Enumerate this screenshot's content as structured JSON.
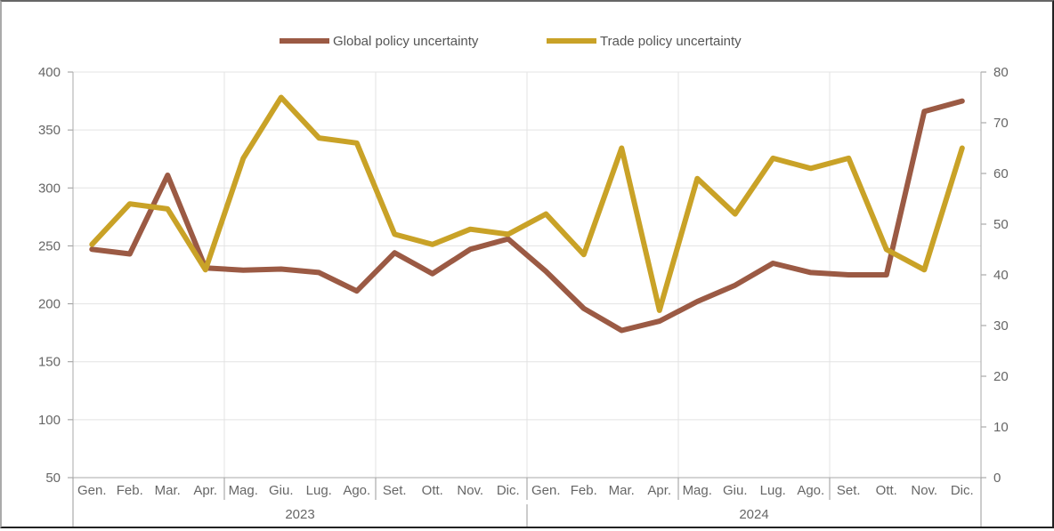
{
  "chart_data": {
    "type": "line",
    "title": "",
    "x_categories": [
      "Gen.",
      "Feb.",
      "Mar.",
      "Apr.",
      "Mag.",
      "Giu.",
      "Lug.",
      "Ago.",
      "Set.",
      "Ott.",
      "Nov.",
      "Dic.",
      "Gen.",
      "Feb.",
      "Mar.",
      "Apr.",
      "Mag.",
      "Giu.",
      "Lug.",
      "Ago.",
      "Set.",
      "Ott.",
      "Nov.",
      "Dic."
    ],
    "year_groups": [
      {
        "label": "2023",
        "start": 0,
        "end": 11
      },
      {
        "label": "2024",
        "start": 12,
        "end": 23
      }
    ],
    "quarter_separators": [
      4,
      8,
      12,
      16,
      20
    ],
    "y_left": {
      "min": 50,
      "max": 400,
      "step": 50,
      "ticks": [
        "50",
        "100",
        "150",
        "200",
        "250",
        "300",
        "350",
        "400"
      ]
    },
    "y_right": {
      "min": 0,
      "max": 80,
      "step": 10,
      "ticks": [
        "0",
        "10",
        "20",
        "30",
        "40",
        "50",
        "60",
        "70",
        "80"
      ]
    },
    "grid": true,
    "legend_position": "top-center",
    "series": [
      {
        "name": "Global policy uncertainty",
        "axis": "left",
        "color": "#9b5a44",
        "values": [
          247,
          243,
          311,
          231,
          229,
          230,
          227,
          211,
          244,
          226,
          247,
          256,
          228,
          196,
          177,
          185,
          202,
          216,
          235,
          227,
          225,
          225,
          366,
          375
        ]
      },
      {
        "name": "Trade policy uncertainty",
        "axis": "right",
        "color": "#c9a227",
        "values": [
          46,
          54,
          53,
          41,
          63,
          75,
          67,
          66,
          48,
          46,
          49,
          48,
          52,
          44,
          65,
          33,
          59,
          52,
          63,
          61,
          63,
          45,
          41,
          65
        ]
      }
    ]
  }
}
